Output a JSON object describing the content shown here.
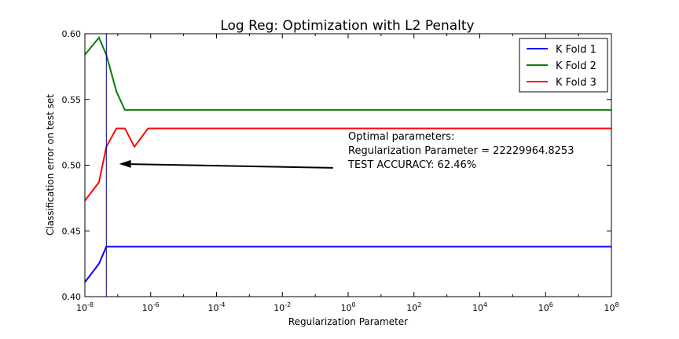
{
  "chart_data": {
    "type": "line",
    "title": "Log Reg: Optimization with L2 Penalty",
    "xlabel": "Regularization Parameter",
    "ylabel": "Classification error on test set",
    "xscale": "log",
    "xlim": [
      1e-08,
      100000000.0
    ],
    "ylim": [
      0.4,
      0.6
    ],
    "xticks": [
      {
        "base": "10",
        "exp": "-8"
      },
      {
        "base": "10",
        "exp": "-6"
      },
      {
        "base": "10",
        "exp": "-4"
      },
      {
        "base": "10",
        "exp": "-2"
      },
      {
        "base": "10",
        "exp": "0"
      },
      {
        "base": "10",
        "exp": "2"
      },
      {
        "base": "10",
        "exp": "4"
      },
      {
        "base": "10",
        "exp": "6"
      },
      {
        "base": "10",
        "exp": "8"
      }
    ],
    "yticks": [
      "0.40",
      "0.45",
      "0.50",
      "0.55",
      "0.60"
    ],
    "grid": false,
    "legend_position": "top-right",
    "x": [
      1e-08,
      2.68e-08,
      4.49e-08,
      9.1e-08,
      1.64e-07,
      3.2e-07,
      8.3e-07,
      100000000.0
    ],
    "series": [
      {
        "name": "K Fold 1",
        "color": "#0000ff",
        "values": [
          0.411,
          0.425,
          0.438,
          0.438,
          0.438,
          0.438,
          0.438,
          0.438
        ]
      },
      {
        "name": "K Fold 2",
        "color": "#008000",
        "values": [
          0.584,
          0.597,
          0.584,
          0.556,
          0.542,
          0.542,
          0.542,
          0.542
        ]
      },
      {
        "name": "K Fold 3",
        "color": "#ff0000",
        "values": [
          0.473,
          0.487,
          0.514,
          0.528,
          0.528,
          0.514,
          0.528,
          0.528
        ]
      }
    ],
    "vline": {
      "x": 4.49e-08,
      "color": "#000080"
    },
    "annotation": {
      "lines": [
        "Optimal parameters:",
        "Regularization Parameter = 22229964.8253",
        "TEST ACCURACY: 62.46%"
      ],
      "arrow_from": {
        "x": 0.35,
        "y": 0.498
      },
      "arrow_to": {
        "x": 1.1e-07,
        "y": 0.501
      }
    }
  }
}
